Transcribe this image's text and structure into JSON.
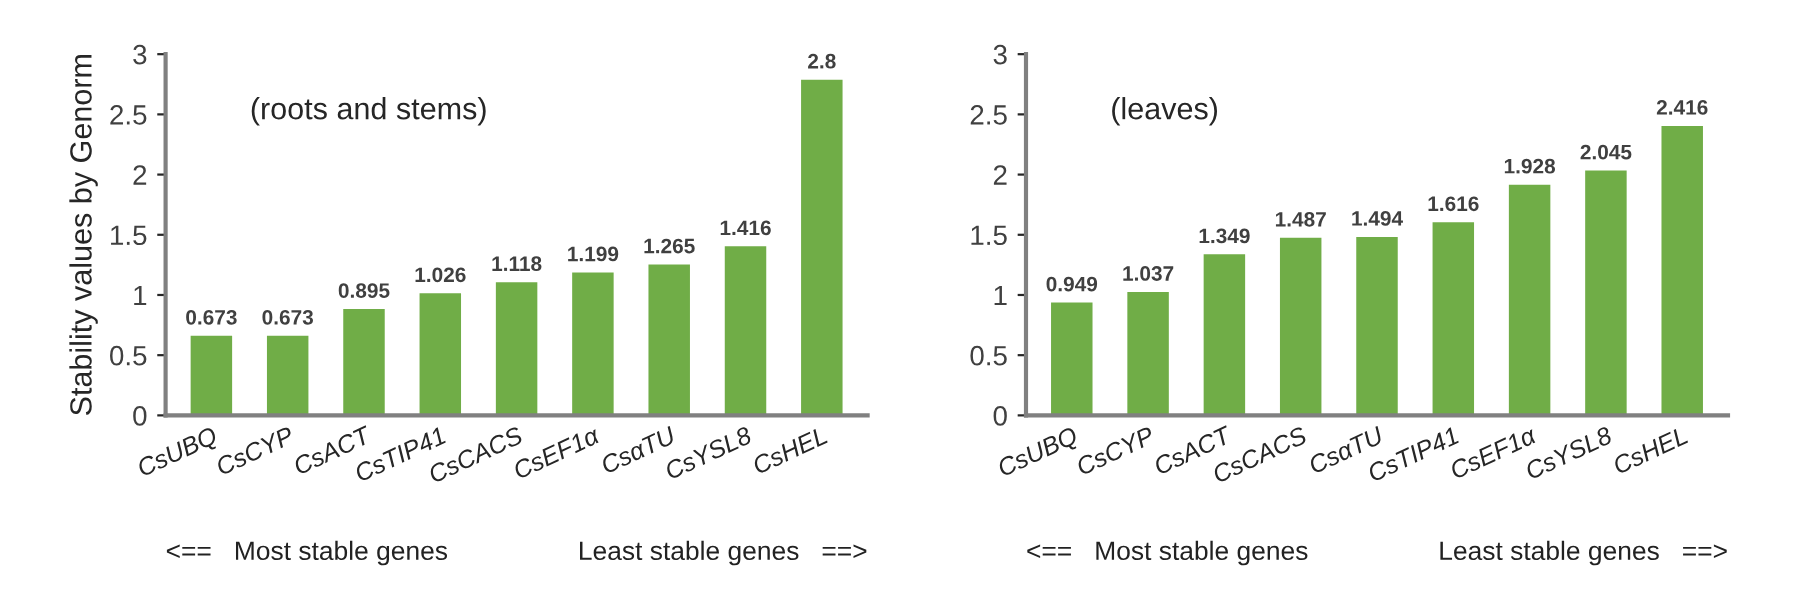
{
  "chart_data": [
    {
      "type": "bar",
      "ylabel": "Stability values by Genorm",
      "categories": [
        "CsUBQ",
        "CsCYP",
        "CsACT",
        "CsTIP41",
        "CsCACS",
        "CsEF1α",
        "CsαTU",
        "CsYSL8",
        "CsHEL"
      ],
      "values": [
        0.673,
        0.673,
        0.895,
        1.026,
        1.118,
        1.199,
        1.265,
        1.416,
        2.8
      ],
      "color": "#70ad47",
      "ylim": [
        0,
        3
      ],
      "yticks": [
        0,
        0.5,
        1,
        1.5,
        2,
        2.5,
        3
      ],
      "data_labels": true,
      "grid": false,
      "legend": false,
      "annotations": [
        "(roots and stems)",
        "<==   Most stable genes",
        "Least stable genes   ==>"
      ]
    },
    {
      "type": "bar",
      "categories": [
        "CsUBQ",
        "CsCYP",
        "CsACT",
        "CsCACS",
        "CsαTU",
        "CsTIP41",
        "CsEF1α",
        "CsYSL8",
        "CsHEL"
      ],
      "values": [
        0.949,
        1.037,
        1.349,
        1.487,
        1.494,
        1.616,
        1.928,
        2.045,
        2.416
      ],
      "color": "#70ad47",
      "ylim": [
        0,
        3
      ],
      "yticks": [
        0,
        0.5,
        1,
        1.5,
        2,
        2.5,
        3
      ],
      "data_labels": true,
      "grid": false,
      "legend": false,
      "annotations": [
        "(leaves)",
        "<==   Most stable genes",
        "Least stable genes   ==>"
      ]
    }
  ]
}
